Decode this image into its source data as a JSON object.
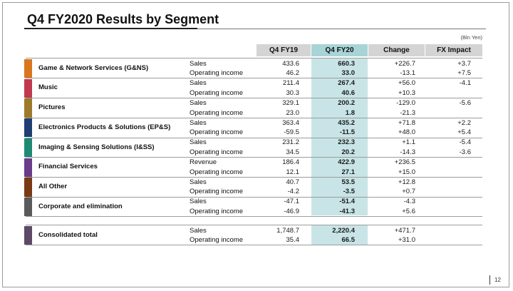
{
  "title": "Q4 FY2020 Results by Segment",
  "unit": "(Bln Yen)",
  "columns": [
    "Q4 FY19",
    "Q4 FY20",
    "Change",
    "FX Impact"
  ],
  "segments": [
    {
      "name": "Game & Network Services (G&NS)",
      "color": "#d9761e",
      "rows": [
        {
          "metric": "Sales",
          "fy19": "433.6",
          "fy20": "660.3",
          "change": "+226.7",
          "fx": "+3.7"
        },
        {
          "metric": "Operating income",
          "fy19": "46.2",
          "fy20": "33.0",
          "change": "-13.1",
          "fx": "+7.5"
        }
      ]
    },
    {
      "name": "Music",
      "color": "#c0394f",
      "rows": [
        {
          "metric": "Sales",
          "fy19": "211.4",
          "fy20": "267.4",
          "change": "+56.0",
          "fx": "-4.1"
        },
        {
          "metric": "Operating income",
          "fy19": "30.3",
          "fy20": "40.6",
          "change": "+10.3",
          "fx": ""
        }
      ]
    },
    {
      "name": "Pictures",
      "color": "#9c7a2a",
      "rows": [
        {
          "metric": "Sales",
          "fy19": "329.1",
          "fy20": "200.2",
          "change": "-129.0",
          "fx": "-5.6"
        },
        {
          "metric": "Operating income",
          "fy19": "23.0",
          "fy20": "1.8",
          "change": "-21.3",
          "fx": ""
        }
      ]
    },
    {
      "name": "Electronics Products & Solutions (EP&S)",
      "color": "#1f3f73",
      "rows": [
        {
          "metric": "Sales",
          "fy19": "363.4",
          "fy20": "435.2",
          "change": "+71.8",
          "fx": "+2.2"
        },
        {
          "metric": "Operating income",
          "fy19": "-59.5",
          "fy20": "-11.5",
          "change": "+48.0",
          "fx": "+5.4"
        }
      ]
    },
    {
      "name": "Imaging & Sensing Solutions (I&SS)",
      "color": "#1e8a74",
      "rows": [
        {
          "metric": "Sales",
          "fy19": "231.2",
          "fy20": "232.3",
          "change": "+1.1",
          "fx": "-5.4"
        },
        {
          "metric": "Operating income",
          "fy19": "34.5",
          "fy20": "20.2",
          "change": "-14.3",
          "fx": "-3.6"
        }
      ]
    },
    {
      "name": "Financial Services",
      "color": "#6a3d8a",
      "rows": [
        {
          "metric": "Revenue",
          "fy19": "186.4",
          "fy20": "422.9",
          "change": "+236.5",
          "fx": ""
        },
        {
          "metric": "Operating income",
          "fy19": "12.1",
          "fy20": "27.1",
          "change": "+15.0",
          "fx": ""
        }
      ]
    },
    {
      "name": "All Other",
      "color": "#7a3a14",
      "rows": [
        {
          "metric": "Sales",
          "fy19": "40.7",
          "fy20": "53.5",
          "change": "+12.8",
          "fx": ""
        },
        {
          "metric": "Operating income",
          "fy19": "-4.2",
          "fy20": "-3.5",
          "change": "+0.7",
          "fx": ""
        }
      ]
    },
    {
      "name": "Corporate and elimination",
      "color": "#5a5a5a",
      "rows": [
        {
          "metric": "Sales",
          "fy19": "-47.1",
          "fy20": "-51.4",
          "change": "-4.3",
          "fx": ""
        },
        {
          "metric": "Operating income",
          "fy19": "-46.9",
          "fy20": "-41.3",
          "change": "+5.6",
          "fx": ""
        }
      ]
    }
  ],
  "consolidated": {
    "name": "Consolidated total",
    "color": "#5c4a66",
    "rows": [
      {
        "metric": "Sales",
        "fy19": "1,748.7",
        "fy20": "2,220.4",
        "change": "+471.7",
        "fx": ""
      },
      {
        "metric": "Operating income",
        "fy19": "35.4",
        "fy20": "66.5",
        "change": "+31.0",
        "fx": ""
      }
    ]
  },
  "page_number": "12"
}
